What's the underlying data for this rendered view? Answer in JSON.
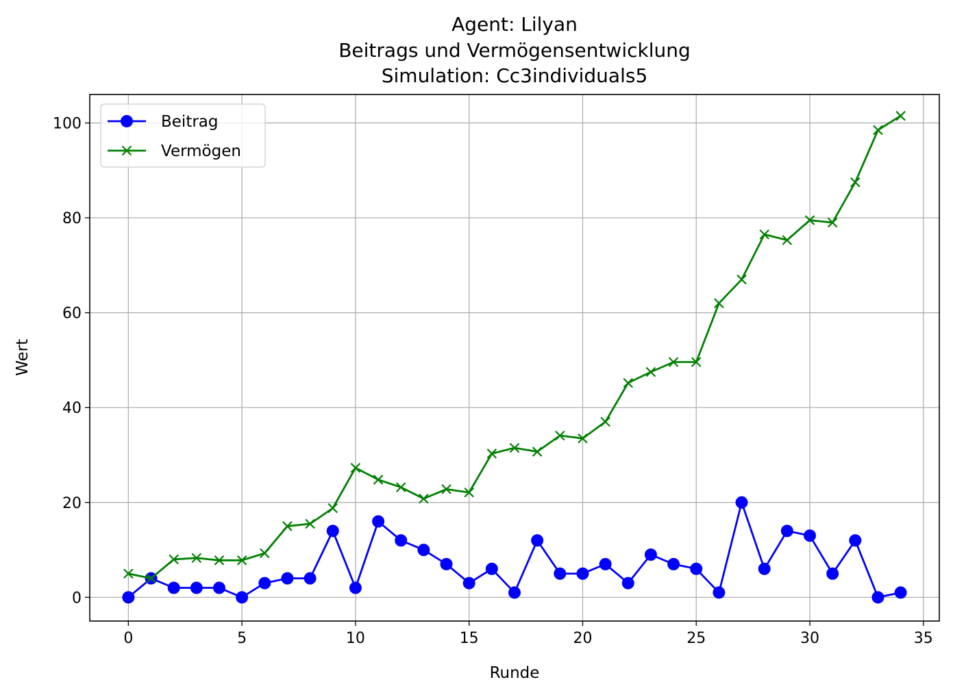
{
  "chart_data": {
    "type": "line",
    "title_lines": [
      "Agent: Lilyan",
      "Beitrags und Vermögensentwicklung",
      "Simulation: Cc3individuals5"
    ],
    "xlabel": "Runde",
    "ylabel": "Wert",
    "xlim": [
      -1.7,
      35.7
    ],
    "ylim": [
      -5,
      106
    ],
    "xticks": [
      0,
      5,
      10,
      15,
      20,
      25,
      30,
      35
    ],
    "yticks": [
      0,
      20,
      40,
      60,
      80,
      100
    ],
    "grid": true,
    "legend_position": "upper-left",
    "x": [
      0,
      1,
      2,
      3,
      4,
      5,
      6,
      7,
      8,
      9,
      10,
      11,
      12,
      13,
      14,
      15,
      16,
      17,
      18,
      19,
      20,
      21,
      22,
      23,
      24,
      25,
      26,
      27,
      28,
      29,
      30,
      31,
      32,
      33,
      34
    ],
    "series": [
      {
        "name": "Beitrag",
        "color": "#0000ff",
        "marker": "circle",
        "values": [
          0,
          4,
          2,
          2,
          2,
          0,
          3,
          4,
          4,
          14,
          2,
          16,
          12,
          10,
          7,
          3,
          6,
          1,
          12,
          5,
          5,
          7,
          3,
          9,
          7,
          6,
          1,
          20,
          6,
          14,
          13,
          5,
          12,
          0,
          1
        ]
      },
      {
        "name": "Vermögen",
        "color": "#008000",
        "marker": "x",
        "values": [
          5,
          4,
          8,
          8.3,
          7.8,
          7.8,
          9.3,
          15,
          15.5,
          18.8,
          27.3,
          24.8,
          23.2,
          20.8,
          22.8,
          22.1,
          30.3,
          31.5,
          30.7,
          34.1,
          33.5,
          37,
          45.2,
          47.5,
          49.6,
          49.6,
          62,
          67,
          76.5,
          75.3,
          79.5,
          79,
          87.5,
          98.5,
          101.5
        ]
      }
    ]
  }
}
